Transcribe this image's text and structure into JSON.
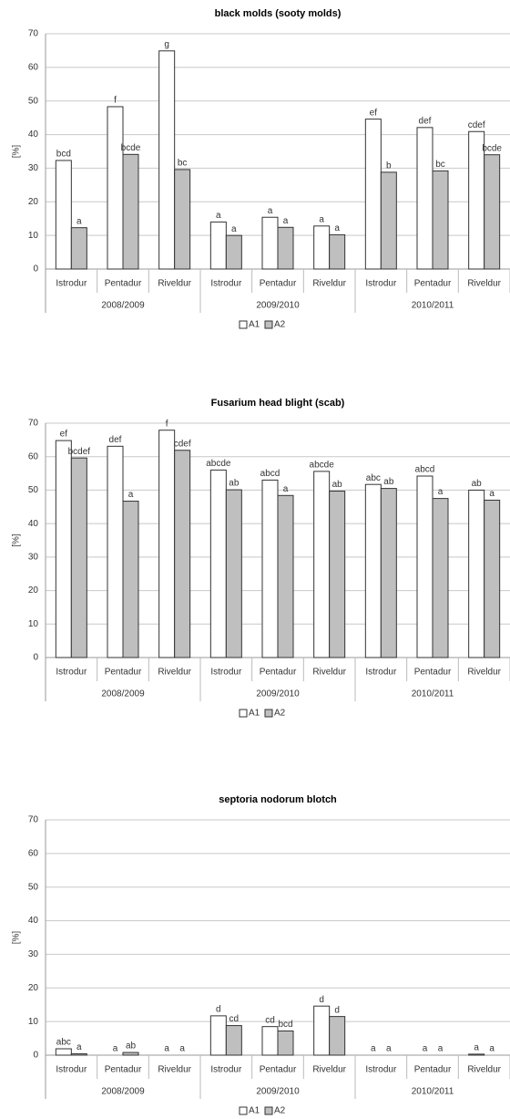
{
  "chart_data": [
    {
      "type": "bar",
      "title": "black molds (sooty molds)",
      "y_label": "[%]",
      "categories": [
        "Istrodur",
        "Pentadur",
        "Riveldur",
        "Istrodur",
        "Pentadur",
        "Riveldur",
        "Istrodur",
        "Pentadur",
        "Riveldur"
      ],
      "groups": [
        "2008/2009",
        "2009/2010",
        "2010/2011"
      ],
      "series": [
        {
          "name": "A1",
          "color": "#ffffff",
          "values": [
            32.3,
            48.3,
            64.9,
            14,
            15.4,
            12.8,
            44.6,
            42.1,
            40.9
          ],
          "letters": [
            "bcd",
            "f",
            "g",
            "a",
            "a",
            "a",
            "ef",
            "def",
            "cdef"
          ]
        },
        {
          "name": "A2",
          "color": "#bfbfbf",
          "values": [
            12.3,
            34.1,
            29.6,
            10,
            12.4,
            10.2,
            28.8,
            29.2,
            34
          ],
          "letters": [
            "a",
            "bcde",
            "bc",
            "a",
            "a",
            "a",
            "b",
            "bc",
            "bcde"
          ]
        }
      ],
      "ylim": [
        0,
        70
      ],
      "yticks": [
        0,
        10,
        20,
        30,
        40,
        50,
        60,
        70
      ],
      "grid": true
    },
    {
      "type": "bar",
      "title": "Fusarium head blight (scab)",
      "y_label": "[%]",
      "categories": [
        "Istrodur",
        "Pentadur",
        "Riveldur",
        "Istrodur",
        "Pentadur",
        "Riveldur",
        "Istrodur",
        "Pentadur",
        "Riveldur"
      ],
      "groups": [
        "2008/2009",
        "2009/2010",
        "2010/2011"
      ],
      "series": [
        {
          "name": "A1",
          "color": "#ffffff",
          "values": [
            64.8,
            63.1,
            67.9,
            56,
            53,
            55.6,
            51.7,
            54.2,
            50
          ],
          "letters": [
            "ef",
            "def",
            "f",
            "abcde",
            "abcd",
            "abcde",
            "abc",
            "abcd",
            "ab"
          ]
        },
        {
          "name": "A2",
          "color": "#bfbfbf",
          "values": [
            59.6,
            46.7,
            61.9,
            50.1,
            48.4,
            49.7,
            50.5,
            47.5,
            47
          ],
          "letters": [
            "bcdef",
            "a",
            "cdef",
            "ab",
            "a",
            "ab",
            "ab",
            "a",
            "a"
          ]
        }
      ],
      "ylim": [
        0,
        70
      ],
      "yticks": [
        0,
        10,
        20,
        30,
        40,
        50,
        60,
        70
      ],
      "grid": true
    },
    {
      "type": "bar",
      "title": "septoria nodorum blotch",
      "y_label": "[%]",
      "categories": [
        "Istrodur",
        "Pentadur",
        "Riveldur",
        "Istrodur",
        "Pentadur",
        "Riveldur",
        "Istrodur",
        "Pentadur",
        "Riveldur"
      ],
      "groups": [
        "2008/2009",
        "2009/2010",
        "2010/2011"
      ],
      "series": [
        {
          "name": "A1",
          "color": "#ffffff",
          "values": [
            1.9,
            0,
            0,
            11.7,
            8.5,
            14.6,
            0,
            0,
            0.3
          ],
          "letters": [
            "abc",
            "a",
            "a",
            "d",
            "cd",
            "d",
            "a",
            "a",
            "a"
          ]
        },
        {
          "name": "A2",
          "color": "#bfbfbf",
          "values": [
            0.4,
            0.8,
            0,
            8.8,
            7.2,
            11.5,
            0,
            0,
            0
          ],
          "letters": [
            "a",
            "ab",
            "a",
            "cd",
            "bcd",
            "d",
            "a",
            "a",
            "a"
          ]
        }
      ],
      "ylim": [
        0,
        70
      ],
      "yticks": [
        0,
        10,
        20,
        30,
        40,
        50,
        60,
        70
      ],
      "grid": true
    }
  ]
}
